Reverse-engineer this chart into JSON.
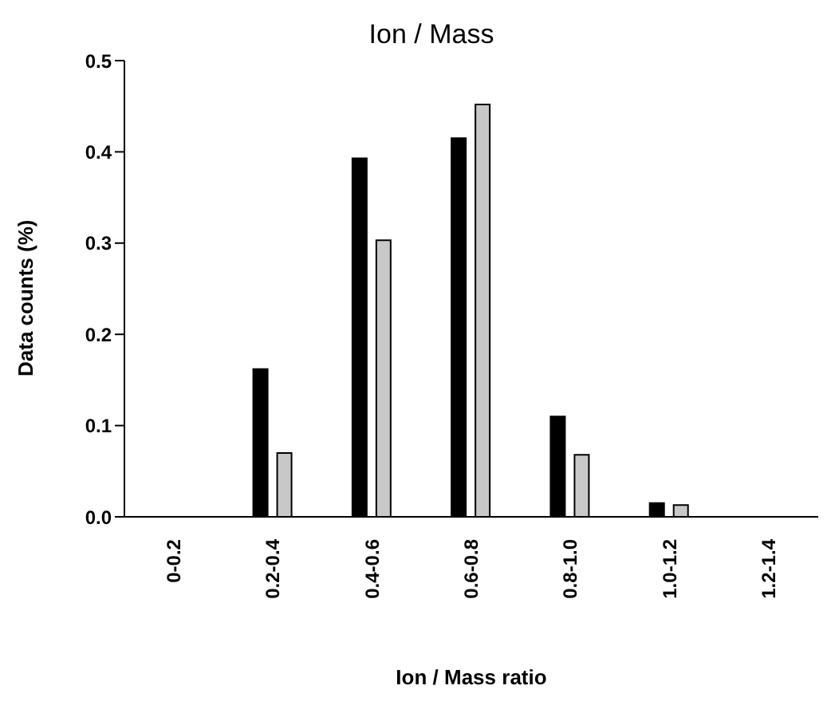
{
  "chart_data": {
    "type": "bar",
    "title": "Ion / Mass",
    "xlabel": "Ion / Mass ratio",
    "ylabel": "Data counts (%)",
    "categories": [
      "0-0.2",
      "0.2-0.4",
      "0.4-0.6",
      "0.6-0.8",
      "0.8-1.0",
      "1.0-1.2",
      "1.2-1.4"
    ],
    "series": [
      {
        "color": "#000000",
        "values": [
          0,
          0.162,
          0.393,
          0.415,
          0.11,
          0.015,
          0
        ]
      },
      {
        "color": "#c8c8c8",
        "values": [
          0,
          0.07,
          0.303,
          0.452,
          0.068,
          0.013,
          0
        ]
      }
    ],
    "ylim": [
      0,
      0.5
    ],
    "yticks": [
      {
        "value": 0,
        "label": "0.0"
      },
      {
        "value": 0.1,
        "label": "0.1"
      },
      {
        "value": 0.2,
        "label": "0.2"
      },
      {
        "value": 0.3,
        "label": "0.3"
      },
      {
        "value": 0.4,
        "label": "0.4"
      },
      {
        "value": 0.5,
        "label": "0.5"
      }
    ],
    "grid": false
  }
}
